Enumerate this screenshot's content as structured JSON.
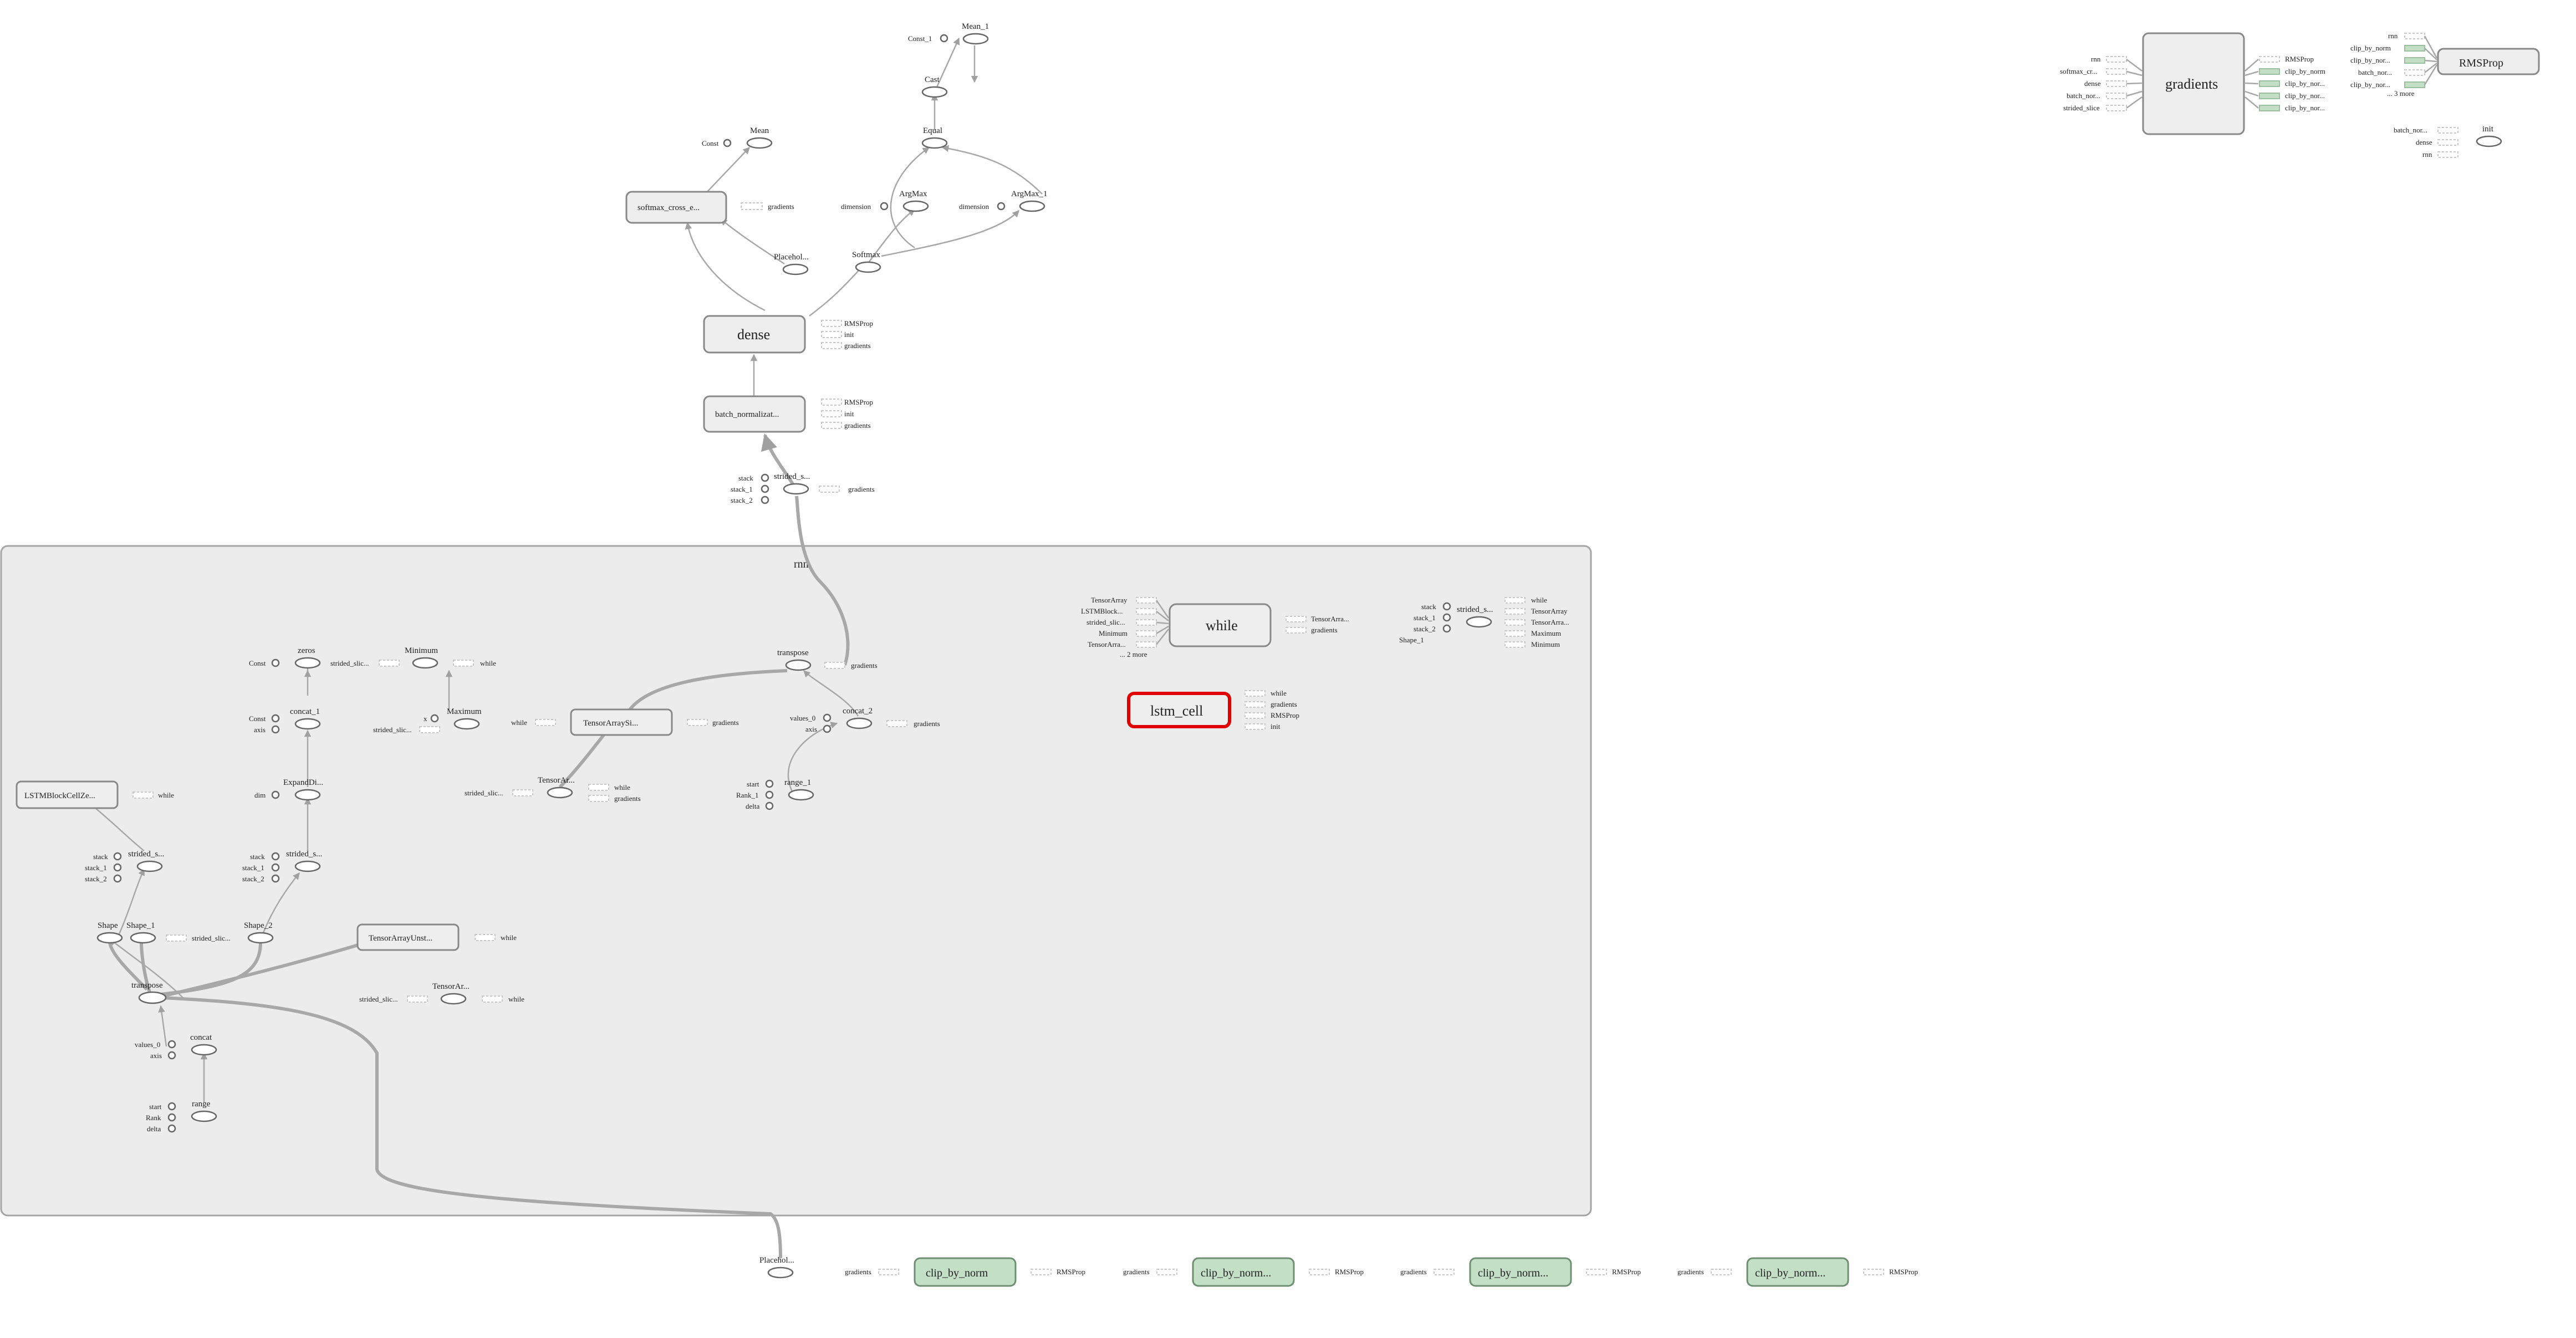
{
  "scope": {
    "name": "rnn"
  },
  "top_chain": {
    "mean_1": "Mean_1",
    "const_1": "Const_1",
    "cast": "Cast",
    "equal": "Equal",
    "mean": "Mean",
    "const": "Const",
    "softmax_cross": "softmax_cross_e...",
    "gradients": "gradients",
    "argmax": "ArgMax",
    "argmax_1": "ArgMax_1",
    "dimension": "dimension",
    "placeholder": "Placehol...",
    "softmax": "Softmax",
    "dense": "dense",
    "rmsprop": "RMSProp",
    "init": "init",
    "batch_norm": "batch_normalizat...",
    "strided_s": "strided_s...",
    "stack": "stack",
    "stack_1": "stack_1",
    "stack_2": "stack_2"
  },
  "rnn_nodes": {
    "zeros": "zeros",
    "const": "Const",
    "strided_slic": "strided_slic...",
    "minimum": "Minimum",
    "while": "while",
    "concat_1": "concat_1",
    "axis": "axis",
    "x": "x",
    "maximum": "Maximum",
    "expanddi": "ExpandDi...",
    "dim": "dim",
    "lstm_block": "LSTMBlockCellZe...",
    "strided_s": "strided_s...",
    "stack": "stack",
    "stack_1": "stack_1",
    "stack_2": "stack_2",
    "shape": "Shape",
    "shape_1": "Shape_1",
    "shape_2": "Shape_2",
    "tensor_unst": "TensorArrayUnst...",
    "tensor_ar": "TensorAr...",
    "transpose": "transpose",
    "concat": "concat",
    "values_0": "values_0",
    "range": "range",
    "start": "start",
    "rank": "Rank",
    "delta": "delta",
    "tensor_si": "TensorArraySi...",
    "gradients": "gradients",
    "concat_2": "concat_2",
    "range_1": "range_1",
    "rank_1": "Rank_1",
    "while_box": "while",
    "tensorarray": "TensorArray",
    "lstmblock": "LSTMBlock...",
    "minimum2": "Minimum",
    "tensorarra": "TensorArra...",
    "more2": "... 2 more",
    "out_tensorarra": "TensorArra...",
    "lstm_cell": "lstm_cell",
    "rmsprop": "RMSProp",
    "init": "init",
    "strided_s2": "strided_s...",
    "tensorarra2": "TensorArra..."
  },
  "bottom": {
    "placeholder": "Placehol...",
    "clip1": "clip_by_norm",
    "clip2": "clip_by_norm...",
    "clip3": "clip_by_norm...",
    "clip4": "clip_by_norm...",
    "gradients": "gradients",
    "rmsprop": "RMSProp"
  },
  "top_right": {
    "gradients": "gradients",
    "rmsprop": "RMSProp",
    "init": "init",
    "rnn": "rnn",
    "softmax_cr": "softmax_cr...",
    "dense": "dense",
    "batch_nor": "batch_nor...",
    "strided_slice": "strided_slice",
    "clip_by_norm": "clip_by_norm",
    "clip_by_nor": "clip_by_nor...",
    "more3": "... 3 more"
  },
  "colors": {
    "scope_fill": "#ececec",
    "clip_green": "#c3dfc6",
    "selected": "#e00000"
  }
}
